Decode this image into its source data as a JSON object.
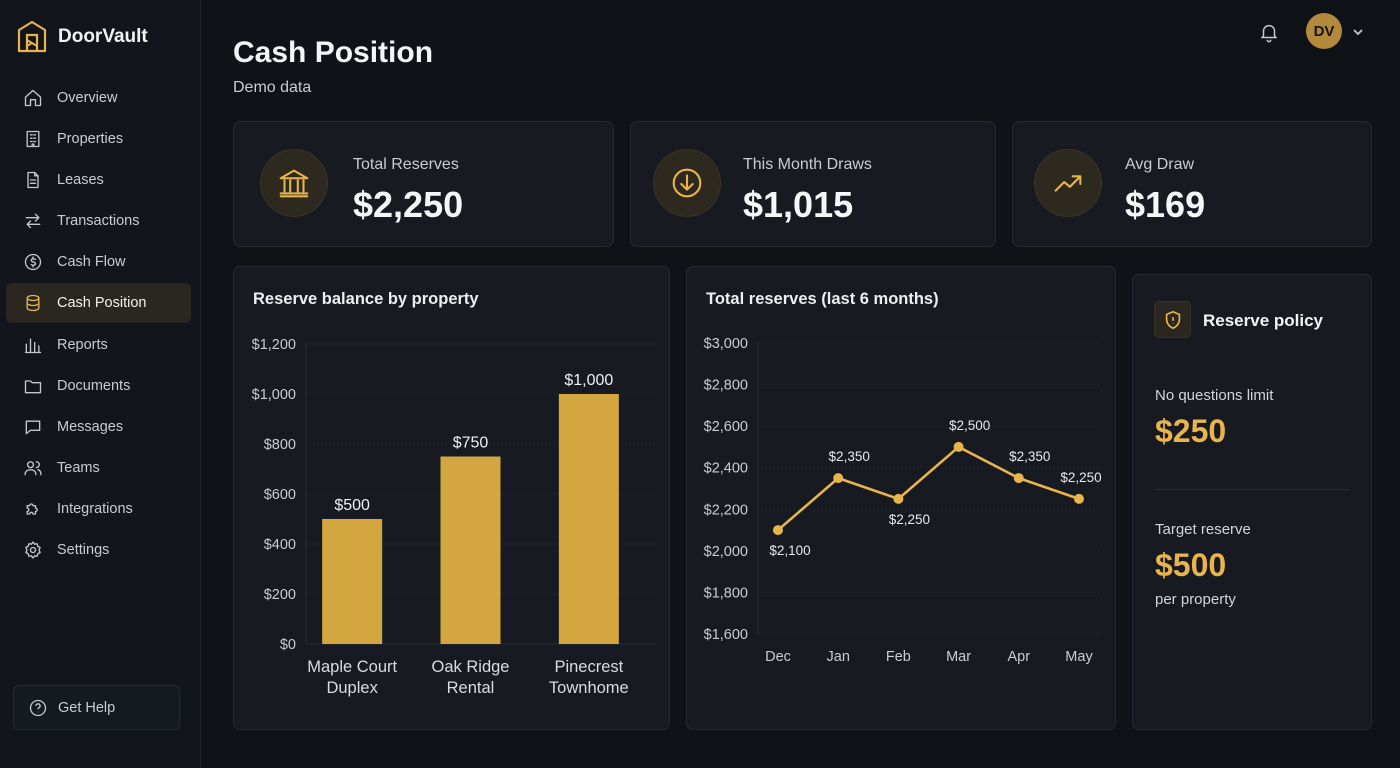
{
  "app": {
    "name": "DoorVault"
  },
  "sidebar": {
    "items": [
      {
        "label": "Overview",
        "icon": "home-icon"
      },
      {
        "label": "Properties",
        "icon": "building-icon"
      },
      {
        "label": "Leases",
        "icon": "document-icon"
      },
      {
        "label": "Transactions",
        "icon": "arrows-icon"
      },
      {
        "label": "Cash Flow",
        "icon": "dollar-circle-icon"
      },
      {
        "label": "Cash Position",
        "icon": "database-icon",
        "active": true
      },
      {
        "label": "Reports",
        "icon": "bar-chart-icon"
      },
      {
        "label": "Documents",
        "icon": "folder-icon"
      },
      {
        "label": "Messages",
        "icon": "message-icon"
      },
      {
        "label": "Teams",
        "icon": "users-icon"
      },
      {
        "label": "Integrations",
        "icon": "puzzle-icon"
      },
      {
        "label": "Settings",
        "icon": "gear-icon"
      }
    ],
    "help_label": "Get Help"
  },
  "header": {
    "title": "Cash Position",
    "subtitle": "Demo data",
    "avatar_initials": "DV"
  },
  "stats": [
    {
      "label": "Total Reserves",
      "value": "$2,250",
      "icon": "bank-icon"
    },
    {
      "label": "This Month Draws",
      "value": "$1,015",
      "icon": "arrow-down-circle-icon"
    },
    {
      "label": "Avg Draw",
      "value": "$169",
      "icon": "trending-up-icon"
    }
  ],
  "policy": {
    "title": "Reserve policy",
    "no_questions_label": "No questions limit",
    "no_questions_value": "$250",
    "target_label": "Target reserve",
    "target_value": "$500",
    "target_sub": "per property"
  },
  "colors": {
    "accent": "#e8b44c",
    "bar": "#d4a640",
    "background": "#0f1217",
    "card": "#171a21"
  },
  "chart_data": [
    {
      "type": "bar",
      "title": "Reserve balance by property",
      "categories": [
        "Maple Court Duplex",
        "Oak Ridge Rental",
        "Pinecrest Townhome"
      ],
      "category_lines": [
        [
          "Maple Court",
          "Duplex"
        ],
        [
          "Oak Ridge",
          "Rental"
        ],
        [
          "Pinecrest",
          "Townhome"
        ]
      ],
      "values": [
        500,
        750,
        1000
      ],
      "value_labels": [
        "$500",
        "$750",
        "$1,000"
      ],
      "ylim": [
        0,
        1200
      ],
      "yticks": [
        0,
        200,
        400,
        600,
        800,
        1000,
        1200
      ],
      "ytick_labels": [
        "$0",
        "$200",
        "$400",
        "$600",
        "$800",
        "$1,000",
        "$1,200"
      ],
      "grid": true
    },
    {
      "type": "line",
      "title": "Total reserves (last 6 months)",
      "categories": [
        "Dec",
        "Jan",
        "Feb",
        "Mar",
        "Apr",
        "May"
      ],
      "values": [
        2100,
        2350,
        2250,
        2500,
        2350,
        2250
      ],
      "value_labels": [
        "$2,100",
        "$2,350",
        "$2,250",
        "$2,500",
        "$2,350",
        "$2,250"
      ],
      "ylim": [
        1600,
        3000
      ],
      "yticks": [
        1600,
        1800,
        2000,
        2200,
        2400,
        2600,
        2800,
        3000
      ],
      "ytick_labels": [
        "$1,600",
        "$1,800",
        "$2,000",
        "$2,200",
        "$2,400",
        "$2,600",
        "$2,800",
        "$3,000"
      ],
      "grid": true
    }
  ]
}
